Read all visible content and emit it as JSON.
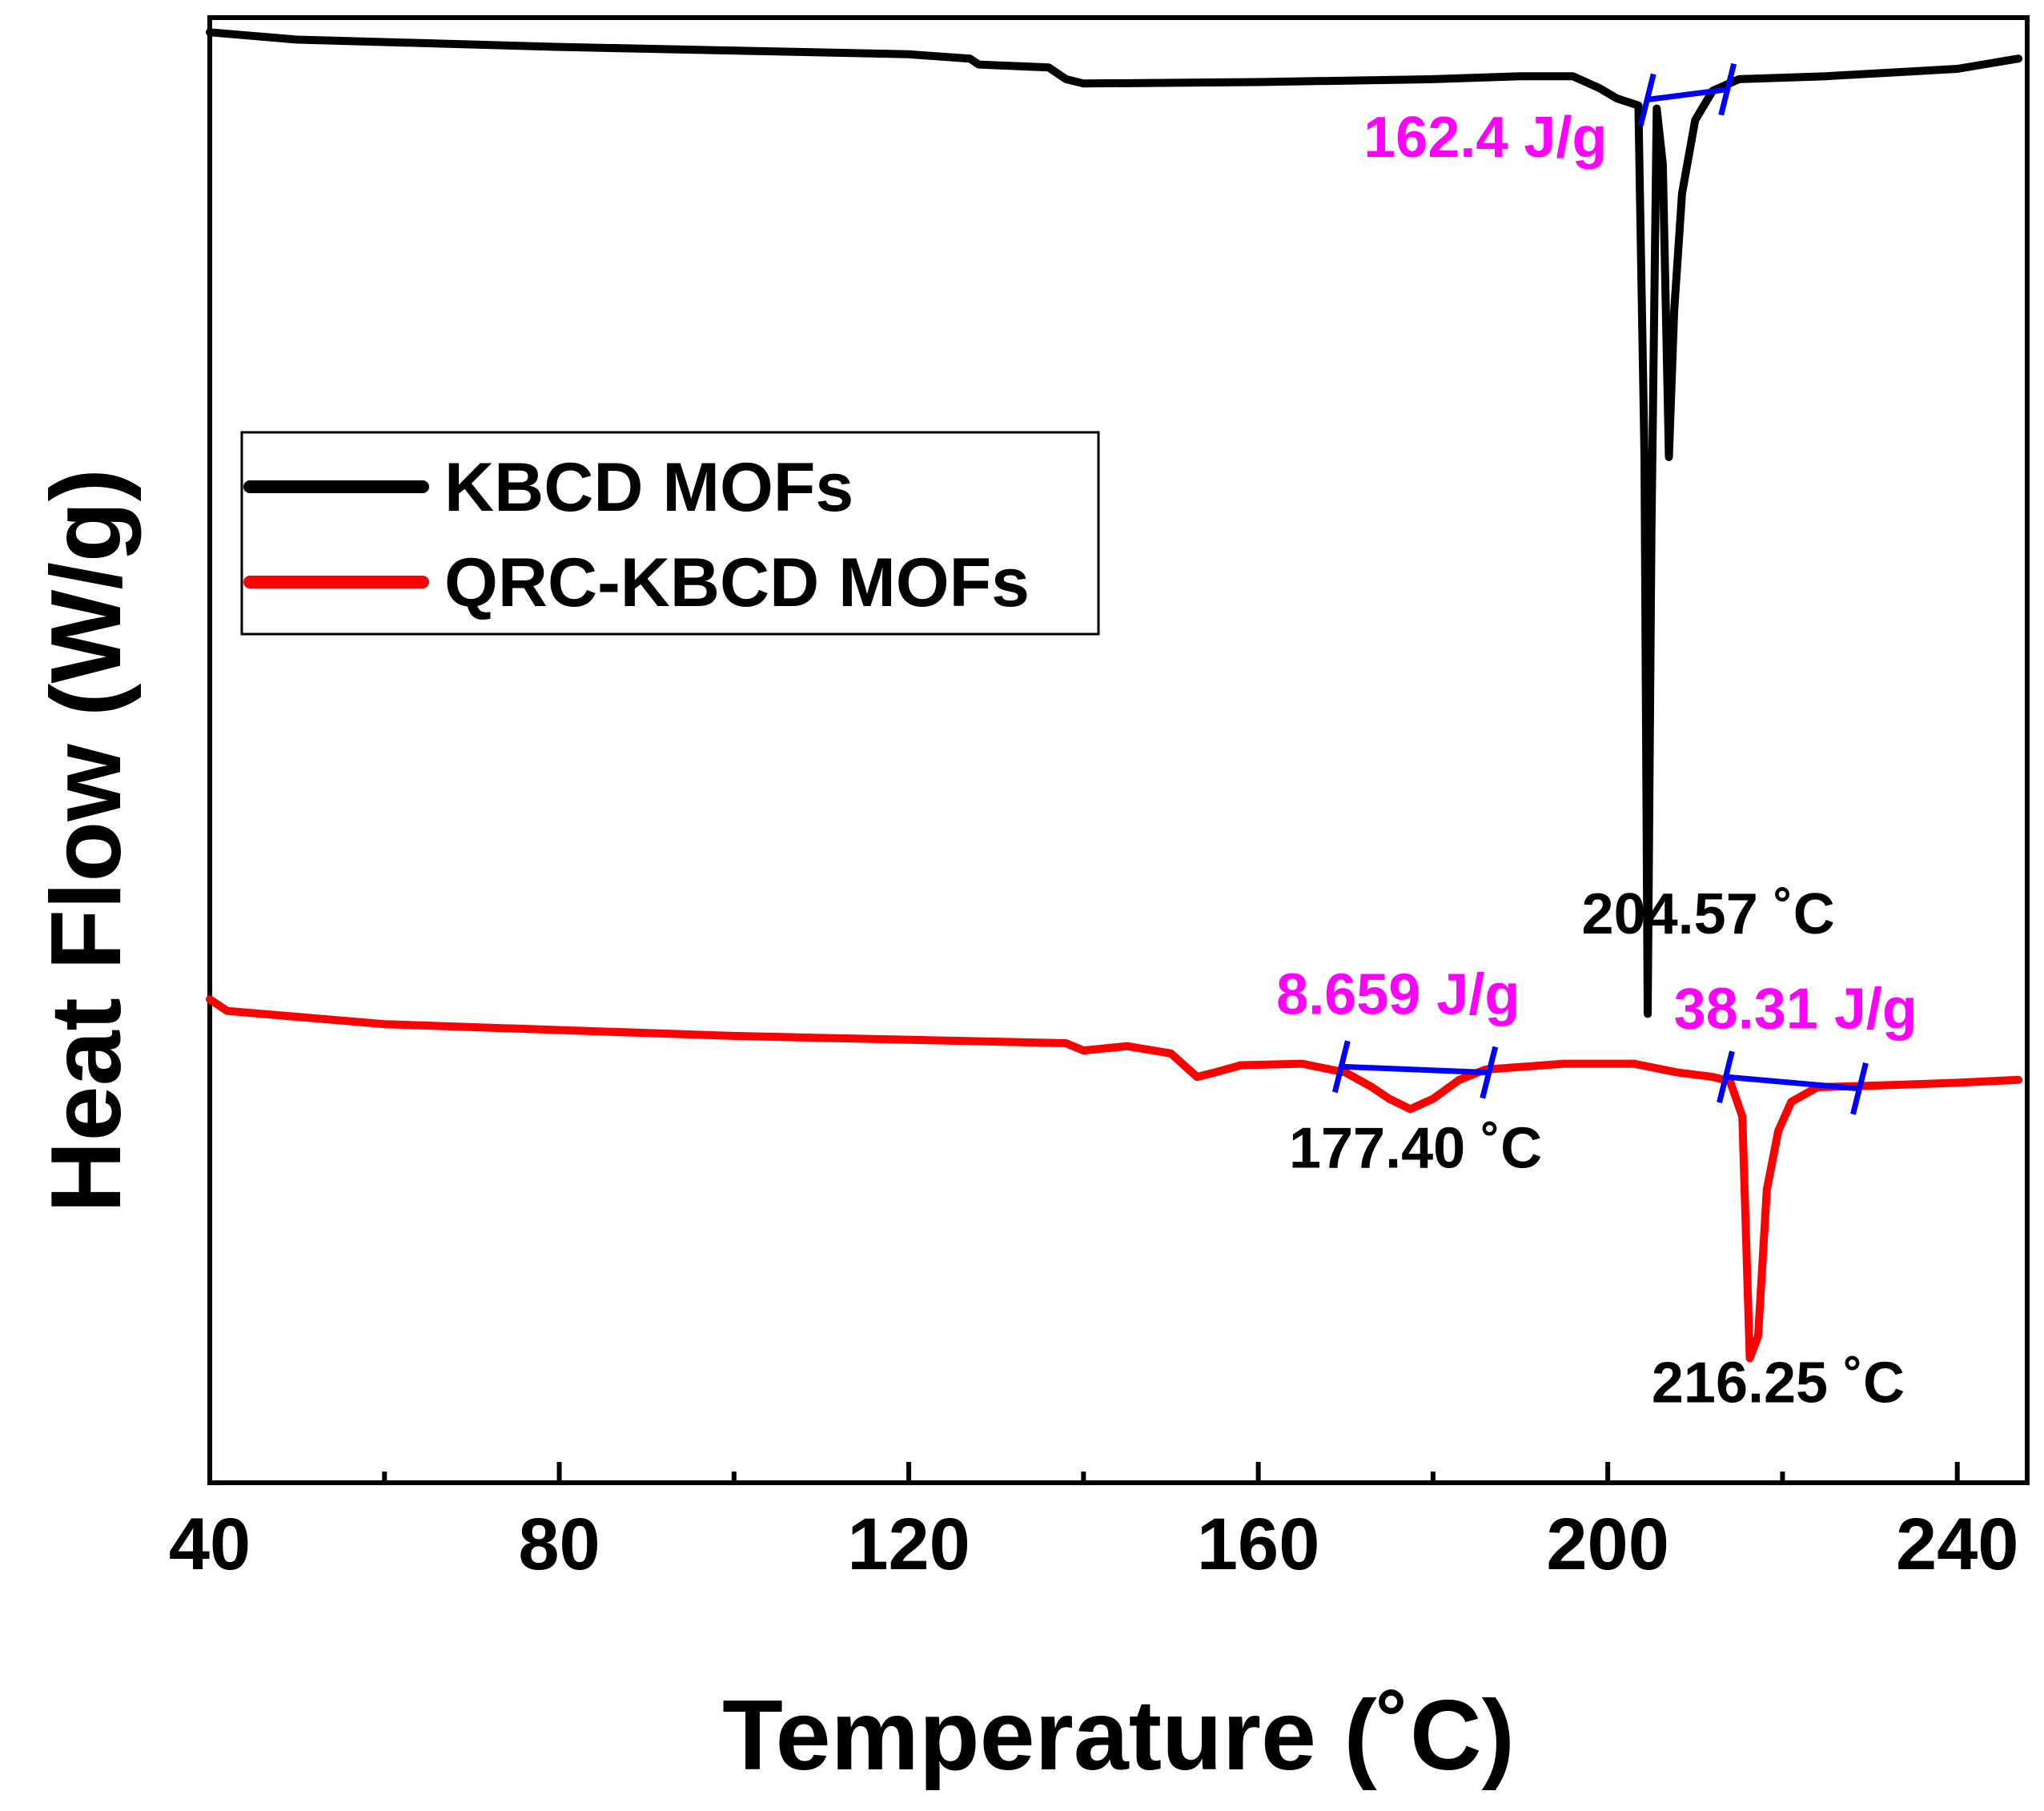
{
  "chart_data": {
    "type": "line",
    "title": "",
    "xlabel": "Temperature (˚C)",
    "ylabel": "Heat Flow (W/g)",
    "xlim": [
      40,
      248
    ],
    "ylim": [
      -10,
      0
    ],
    "xticks": [
      40,
      80,
      120,
      160,
      200,
      240
    ],
    "xtick_labels": [
      "40",
      "80",
      "120",
      "160",
      "200",
      "240"
    ],
    "grid": false,
    "legend": {
      "position": "center-left",
      "entries": [
        {
          "label": "KBCD MOFs",
          "color": "#000000"
        },
        {
          "label": "QRC-KBCD MOFs",
          "color": "#ff0000"
        }
      ]
    },
    "series": [
      {
        "name": "KBCD MOFs",
        "color": "#000000",
        "points": [
          [
            40,
            -0.1
          ],
          [
            50,
            -0.15
          ],
          [
            80,
            -0.2
          ],
          [
            120,
            -0.25
          ],
          [
            127,
            -0.28
          ],
          [
            128,
            -0.32
          ],
          [
            136,
            -0.34
          ],
          [
            138,
            -0.42
          ],
          [
            140,
            -0.45
          ],
          [
            160,
            -0.44
          ],
          [
            180,
            -0.42
          ],
          [
            190,
            -0.4
          ],
          [
            196,
            -0.4
          ],
          [
            199,
            -0.48
          ],
          [
            201,
            -0.55
          ],
          [
            203.5,
            -0.6
          ],
          [
            204.2,
            -3.0
          ],
          [
            204.57,
            -6.8
          ],
          [
            205.0,
            -3.5
          ],
          [
            205.6,
            -0.62
          ],
          [
            206.3,
            -1.0
          ],
          [
            207.0,
            -3.0
          ],
          [
            207.6,
            -2.0
          ],
          [
            208.5,
            -1.2
          ],
          [
            210,
            -0.7
          ],
          [
            212,
            -0.5
          ],
          [
            215,
            -0.42
          ],
          [
            225,
            -0.4
          ],
          [
            240,
            -0.35
          ],
          [
            247,
            -0.28
          ]
        ]
      },
      {
        "name": "QRC-KBCD MOFs",
        "color": "#ff0000",
        "points": [
          [
            40,
            -6.7
          ],
          [
            42,
            -6.78
          ],
          [
            60,
            -6.87
          ],
          [
            100,
            -6.95
          ],
          [
            138,
            -7.0
          ],
          [
            140,
            -7.05
          ],
          [
            145,
            -7.02
          ],
          [
            150,
            -7.07
          ],
          [
            153,
            -7.23
          ],
          [
            155,
            -7.2
          ],
          [
            158,
            -7.15
          ],
          [
            165,
            -7.14
          ],
          [
            170,
            -7.2
          ],
          [
            173,
            -7.3
          ],
          [
            175,
            -7.38
          ],
          [
            177.4,
            -7.45
          ],
          [
            180,
            -7.38
          ],
          [
            183,
            -7.25
          ],
          [
            186,
            -7.18
          ],
          [
            195,
            -7.14
          ],
          [
            203,
            -7.14
          ],
          [
            208,
            -7.2
          ],
          [
            212,
            -7.23
          ],
          [
            214,
            -7.26
          ],
          [
            215.4,
            -7.5
          ],
          [
            216.25,
            -9.15
          ],
          [
            217.2,
            -9.0
          ],
          [
            218.2,
            -8.0
          ],
          [
            219.5,
            -7.6
          ],
          [
            221,
            -7.4
          ],
          [
            224,
            -7.3
          ],
          [
            230,
            -7.29
          ],
          [
            240,
            -7.27
          ],
          [
            247,
            -7.25
          ]
        ]
      }
    ],
    "integration_lines": [
      {
        "series": "KBCD MOFs",
        "color": "#0000ff",
        "from": [
          204.5,
          -0.56
        ],
        "to": [
          213.7,
          -0.49
        ]
      },
      {
        "series": "QRC-KBCD MOFs",
        "color": "#0000ff",
        "from": [
          169.5,
          -7.16
        ],
        "to": [
          186.4,
          -7.2
        ]
      },
      {
        "series": "QRC-KBCD MOFs",
        "color": "#0000ff",
        "from": [
          213.5,
          -7.23
        ],
        "to": [
          228.8,
          -7.31
        ]
      }
    ],
    "annotations": [
      {
        "text": "162.4 J/g",
        "color": "#ff00ff",
        "x": 186,
        "y": -0.95
      },
      {
        "text": "204.57 ˚C",
        "color": "#000000",
        "x": 211.5,
        "y": -6.25
      },
      {
        "text": "8.659 J/g",
        "color": "#ff00ff",
        "x": 176,
        "y": -6.8
      },
      {
        "text": "38.31 J/g",
        "color": "#ff00ff",
        "x": 221.5,
        "y": -6.9
      },
      {
        "text": "177.40 ˚C",
        "color": "#000000",
        "x": 178,
        "y": -7.85
      },
      {
        "text": "216.25 ˚C",
        "color": "#000000",
        "x": 219.5,
        "y": -9.45
      }
    ]
  }
}
